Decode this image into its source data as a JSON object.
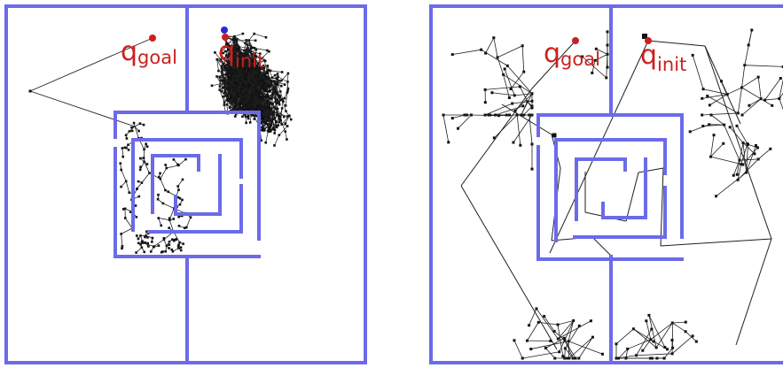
{
  "colors": {
    "wall": "#6b6bea",
    "edge": "#1f1f1f",
    "node": "#111111",
    "marker": "#cc1f1f",
    "init_blue": "#2a2ad4",
    "label": "#cc1f1f"
  },
  "panels": [
    {
      "name": "left-rrt",
      "labels": {
        "goal_main": "q",
        "goal_sub": "goal",
        "init_main": "q",
        "init_sub": "init"
      }
    },
    {
      "name": "right-rrt",
      "labels": {
        "goal_main": "q",
        "goal_sub": "goal",
        "init_main": "q",
        "init_sub": "init"
      }
    }
  ]
}
